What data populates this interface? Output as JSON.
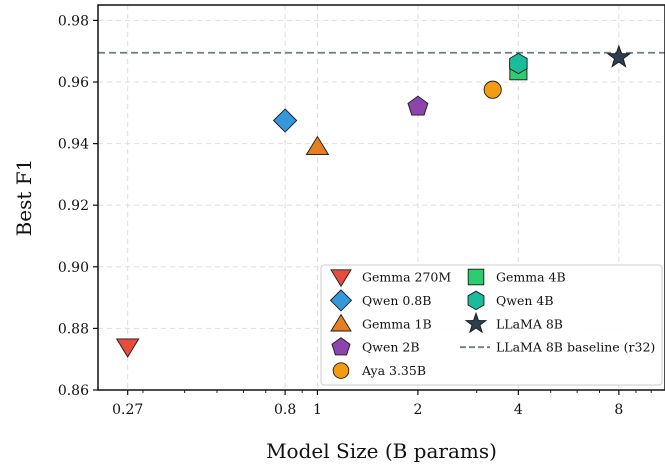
{
  "chart_data": {
    "type": "scatter",
    "xlabel": "Model Size (B params)",
    "ylabel": "Best F1",
    "xscale": "log",
    "xlim": [
      0.22,
      11.0
    ],
    "ylim": [
      0.86,
      0.985
    ],
    "x_ticks": [
      0.27,
      0.8,
      1,
      2,
      4,
      8
    ],
    "x_tick_labels": [
      "0.27",
      "0.8",
      "1",
      "2",
      "4",
      "8"
    ],
    "y_ticks": [
      0.86,
      0.88,
      0.9,
      0.92,
      0.94,
      0.96,
      0.98
    ],
    "y_tick_labels": [
      "0.86",
      "0.88",
      "0.90",
      "0.92",
      "0.94",
      "0.96",
      "0.98"
    ],
    "grid": true,
    "legend_position": "bottom-right",
    "series": [
      {
        "name": "Gemma 270M",
        "x": 0.27,
        "y": 0.874,
        "marker": "triangle-down",
        "color": "#e74c3c"
      },
      {
        "name": "Qwen 0.8B",
        "x": 0.8,
        "y": 0.9475,
        "marker": "diamond",
        "color": "#3498db"
      },
      {
        "name": "Gemma 1B",
        "x": 1.0,
        "y": 0.939,
        "marker": "triangle-up",
        "color": "#e67e22"
      },
      {
        "name": "Qwen 2B",
        "x": 2.0,
        "y": 0.952,
        "marker": "pentagon",
        "color": "#8e44ad"
      },
      {
        "name": "Aya 3.35B",
        "x": 3.35,
        "y": 0.9575,
        "marker": "circle",
        "color": "#f39c12"
      },
      {
        "name": "Gemma 4B",
        "x": 4.0,
        "y": 0.9635,
        "marker": "square",
        "color": "#2ecc71"
      },
      {
        "name": "Qwen 4B",
        "x": 4.0,
        "y": 0.966,
        "marker": "hexagon",
        "color": "#1abc9c"
      },
      {
        "name": "LLaMA 8B",
        "x": 8.0,
        "y": 0.968,
        "marker": "star",
        "color": "#2c3e50"
      }
    ],
    "reference_lines": [
      {
        "name": "LLaMA 8B baseline (r32)",
        "y": 0.9695,
        "style": "dashed",
        "color": "#6c7a89"
      }
    ]
  }
}
